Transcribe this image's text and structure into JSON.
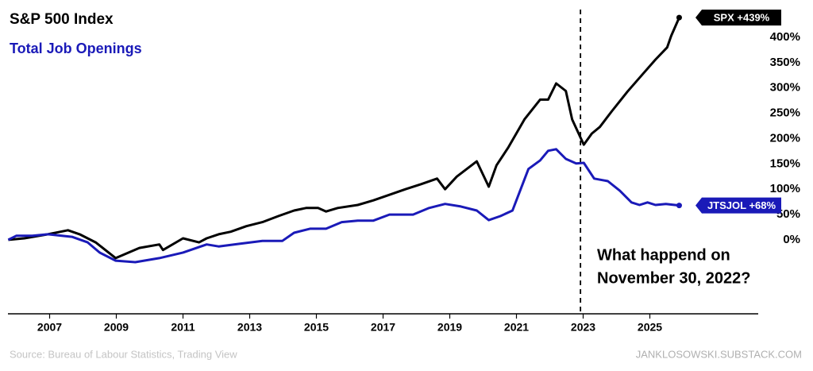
{
  "chart_data": {
    "type": "line",
    "title": null,
    "annotation": [
      "What happend on",
      "November 30, 2022?"
    ],
    "marker_x": 2022.92,
    "source": "Source:  Bureau of Labour Statistics, Trading View",
    "credit": "JANKLOSOWSKI.SUBSTACK.COM",
    "xlim": [
      2005.75,
      2028.25
    ],
    "xticks": [
      2007,
      2009,
      2011,
      2013,
      2015,
      2017,
      2019,
      2021,
      2023,
      2025
    ],
    "ylim": [
      -146,
      458
    ],
    "yticks": [
      {
        "value": 0,
        "label": "0%"
      },
      {
        "value": 50,
        "label": "50%"
      },
      {
        "value": 100,
        "label": "100%"
      },
      {
        "value": 150,
        "label": "150%"
      },
      {
        "value": 200,
        "label": "200%"
      },
      {
        "value": 250,
        "label": "250%"
      },
      {
        "value": 300,
        "label": "300%"
      },
      {
        "value": 350,
        "label": "350%"
      },
      {
        "value": 400,
        "label": "400%"
      }
    ],
    "series": [
      {
        "name": "S&P 500 Index",
        "color": "#000000",
        "end_label": "SPX +439%",
        "x": [
          2005.76,
          2006.24,
          2006.95,
          2007.55,
          2007.9,
          2008.38,
          2008.98,
          2009.69,
          2010.29,
          2010.4,
          2011.0,
          2011.48,
          2011.71,
          2012.07,
          2012.43,
          2012.9,
          2013.38,
          2013.86,
          2014.33,
          2014.69,
          2015.05,
          2015.29,
          2015.64,
          2016.24,
          2016.71,
          2017.19,
          2017.67,
          2018.14,
          2018.62,
          2018.86,
          2019.21,
          2019.81,
          2020.17,
          2020.4,
          2020.76,
          2021.24,
          2021.71,
          2021.95,
          2022.19,
          2022.48,
          2022.67,
          2023.02,
          2023.26,
          2023.5,
          2023.86,
          2024.33,
          2024.81,
          2025.17,
          2025.52,
          2025.64,
          2025.88
        ],
        "values": [
          0,
          3,
          11,
          19,
          11,
          -5,
          -36,
          -16,
          -9,
          -20,
          3,
          -5,
          3,
          11,
          16,
          27,
          35,
          47,
          58,
          63,
          63,
          56,
          63,
          69,
          78,
          89,
          100,
          110,
          121,
          100,
          125,
          155,
          105,
          147,
          183,
          238,
          277,
          277,
          309,
          294,
          238,
          188,
          210,
          223,
          254,
          293,
          329,
          356,
          380,
          403,
          439
        ]
      },
      {
        "name": "Total Job Openings",
        "color": "#1a1ab8",
        "end_label": "JTSJOL +68%",
        "x": [
          2005.76,
          2006.0,
          2006.48,
          2006.95,
          2007.67,
          2008.14,
          2008.5,
          2008.98,
          2009.57,
          2010.29,
          2011.0,
          2011.71,
          2012.07,
          2012.67,
          2013.38,
          2013.98,
          2014.33,
          2014.81,
          2015.29,
          2015.76,
          2016.24,
          2016.71,
          2017.19,
          2017.9,
          2018.38,
          2018.86,
          2019.33,
          2019.81,
          2020.17,
          2020.52,
          2020.88,
          2021.36,
          2021.71,
          2021.95,
          2022.19,
          2022.48,
          2022.79,
          2023.02,
          2023.33,
          2023.74,
          2024.1,
          2024.45,
          2024.69,
          2024.93,
          2025.17,
          2025.48,
          2025.88
        ],
        "values": [
          0,
          8,
          8,
          11,
          6,
          -5,
          -25,
          -41,
          -44,
          -36,
          -25,
          -9,
          -13,
          -8,
          -2,
          -2,
          14,
          22,
          22,
          35,
          38,
          38,
          50,
          50,
          63,
          71,
          66,
          58,
          39,
          47,
          58,
          140,
          157,
          176,
          179,
          160,
          151,
          152,
          121,
          116,
          97,
          74,
          69,
          74,
          69,
          71,
          68
        ]
      }
    ]
  }
}
